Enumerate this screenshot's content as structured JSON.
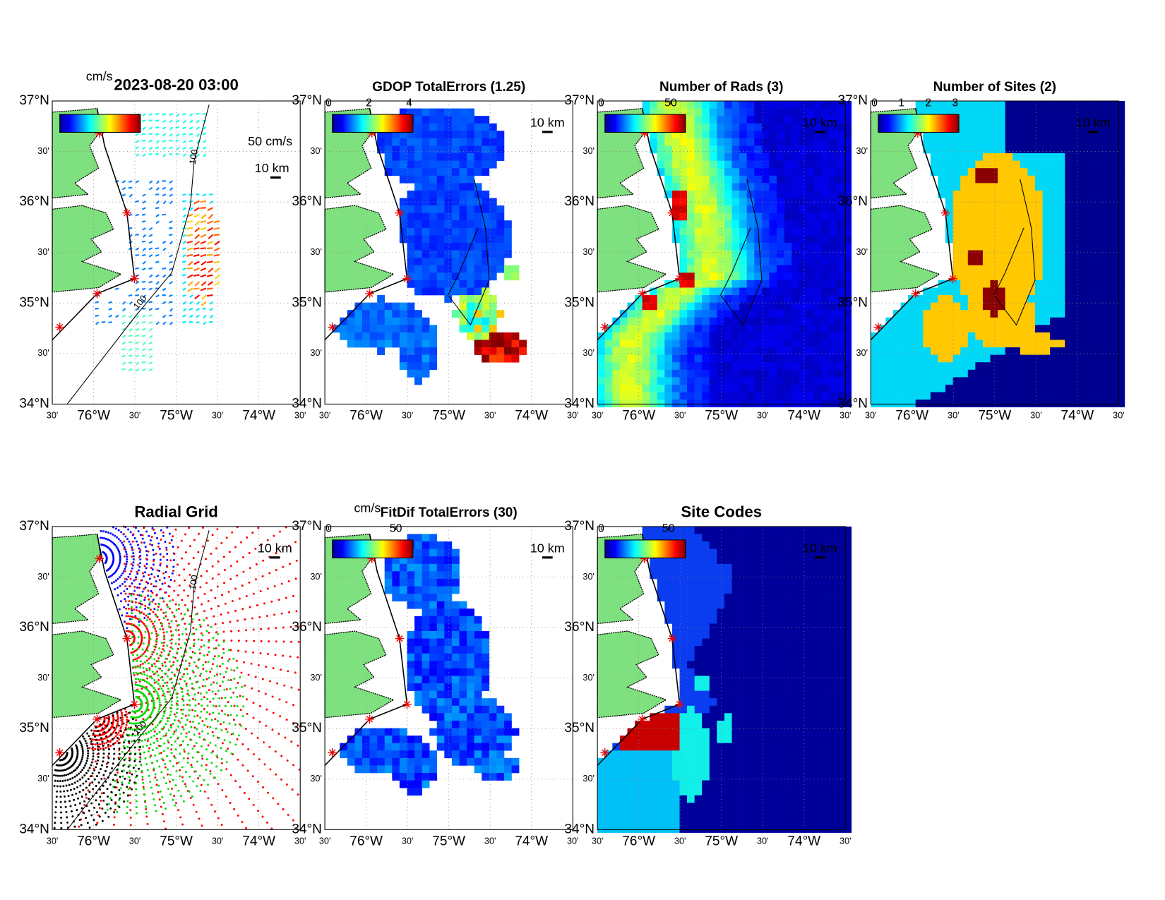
{
  "panels": [
    {
      "title": "2023-08-20 03:00",
      "unit": "cm/s",
      "speed_label": "50 cm/s",
      "scale_label": "10 km",
      "contour_label": "100"
    },
    {
      "title": "GDOP TotalErrors (1.25)",
      "colorbar_ticks": [
        0,
        2,
        4
      ],
      "colorbar_lim": [
        0,
        4
      ],
      "scale_label": "10 km"
    },
    {
      "title": "Number of Rads (3)",
      "colorbar_ticks": [
        0,
        50
      ],
      "colorbar_lim": [
        0,
        58
      ],
      "scale_label": "10 km"
    },
    {
      "title": "Number of Sites (2)",
      "colorbar_ticks": [
        0,
        1,
        2,
        3
      ],
      "colorbar_lim": [
        0,
        3
      ],
      "scale_label": "10 km"
    },
    {
      "title": "Radial Grid",
      "scale_label": "10 km",
      "contour_label": "100"
    },
    {
      "title": "FitDif TotalErrors (30)",
      "unit": "cm/s",
      "colorbar_ticks": [
        0,
        50
      ],
      "colorbar_lim": [
        0,
        60
      ],
      "scale_label": "10 km"
    },
    {
      "title": "Site Codes",
      "colorbar_ticks": [
        0,
        50
      ],
      "colorbar_lim": [
        0,
        60
      ],
      "scale_label": "10 km"
    }
  ],
  "lat_labels": [
    "37°N",
    "30'",
    "36°N",
    "30'",
    "35°N",
    "30'",
    "34°N"
  ],
  "lon_labels": [
    "30'",
    "76°W",
    "30'",
    "75°W",
    "30'",
    "74°W",
    "30'"
  ]
}
